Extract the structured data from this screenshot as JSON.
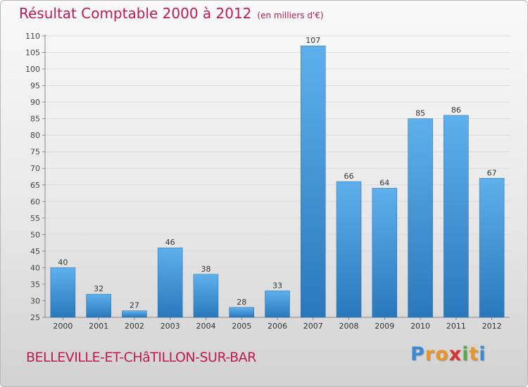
{
  "header": {
    "title": "Résultat Comptable 2000 à 2012",
    "unit": "(en milliers d'€)"
  },
  "commune_name": "BELLEVILLE-ET-CHâTILLON-SUR-BAR",
  "logo": {
    "text": "Proxiti",
    "letters": [
      {
        "char": "P",
        "color": "#3a8ad8"
      },
      {
        "char": "r",
        "color": "#e8962a"
      },
      {
        "char": "o",
        "color": "#e8962a"
      },
      {
        "char": "x",
        "color": "#d8342e"
      },
      {
        "char": "i",
        "color": "#5aa84a"
      },
      {
        "char": "t",
        "color": "#e8962a"
      },
      {
        "char": "i",
        "color": "#3a8ad8"
      }
    ]
  },
  "colors": {
    "title": "#c01a52",
    "bar_light": "#5eb0ec",
    "bar_dark": "#2a78bc",
    "axis": "#888888",
    "grid": "#dcdcdc"
  },
  "chart_data": {
    "type": "bar",
    "title": "Résultat Comptable 2000 à 2012",
    "ylabel": "(en milliers d'€)",
    "xlabel": "",
    "categories": [
      "2000",
      "2001",
      "2002",
      "2003",
      "2004",
      "2005",
      "2006",
      "2007",
      "2008",
      "2009",
      "2010",
      "2011",
      "2012"
    ],
    "values": [
      40,
      32,
      27,
      46,
      38,
      28,
      33,
      107,
      66,
      64,
      85,
      86,
      67
    ],
    "ylim": [
      25,
      110
    ],
    "yticks": [
      25,
      30,
      35,
      40,
      45,
      50,
      55,
      60,
      65,
      70,
      75,
      80,
      85,
      90,
      95,
      100,
      105,
      110
    ],
    "grid": true,
    "data_labels": true
  }
}
